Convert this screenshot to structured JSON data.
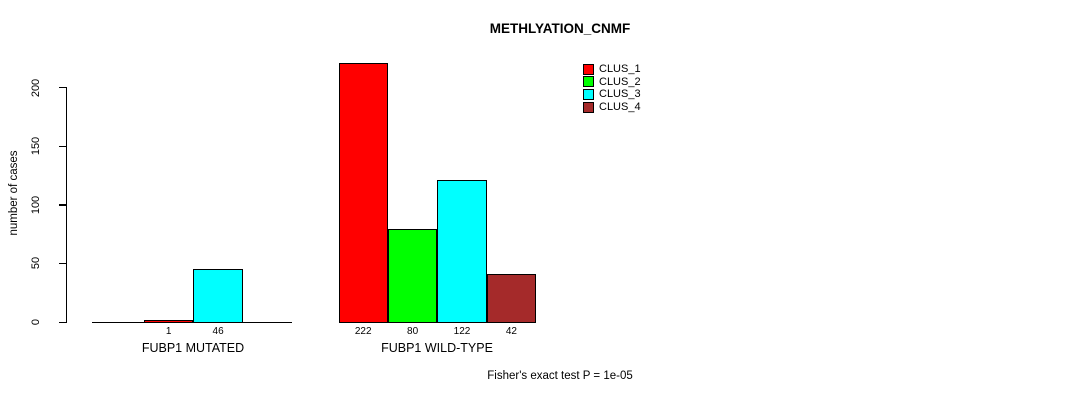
{
  "chart_data": {
    "type": "bar",
    "title": "METHLYATION_CNMF",
    "ylabel": "number of cases",
    "yticks": [
      0,
      50,
      100,
      150,
      200
    ],
    "ylim": [
      0,
      230
    ],
    "grid": false,
    "legend_position": "top-right",
    "legend": [
      {
        "name": "CLUS_1",
        "color": "#FF0000"
      },
      {
        "name": "CLUS_2",
        "color": "#00FF00"
      },
      {
        "name": "CLUS_3",
        "color": "#00FFFF"
      },
      {
        "name": "CLUS_4",
        "color": "#A52A2A"
      }
    ],
    "groups": [
      {
        "label": "FUBP1 MUTATED",
        "bars": [
          {
            "cluster": "CLUS_1",
            "value": 1,
            "value_label": "1",
            "color": "#FF0000"
          },
          {
            "cluster": "CLUS_3",
            "value": 46,
            "value_label": "46",
            "color": "#00FFFF"
          }
        ]
      },
      {
        "label": "FUBP1 WILD-TYPE",
        "bars": [
          {
            "cluster": "CLUS_1",
            "value": 222,
            "value_label": "222",
            "color": "#FF0000"
          },
          {
            "cluster": "CLUS_2",
            "value": 80,
            "value_label": "80",
            "color": "#00FF00"
          },
          {
            "cluster": "CLUS_3",
            "value": 122,
            "value_label": "122",
            "color": "#00FFFF"
          },
          {
            "cluster": "CLUS_4",
            "value": 42,
            "value_label": "42",
            "color": "#A52A2A"
          }
        ]
      }
    ],
    "annotation": "Fisher's exact test P = 1e-05",
    "axis_color": "#000000",
    "bar_border_color": "#000000"
  }
}
